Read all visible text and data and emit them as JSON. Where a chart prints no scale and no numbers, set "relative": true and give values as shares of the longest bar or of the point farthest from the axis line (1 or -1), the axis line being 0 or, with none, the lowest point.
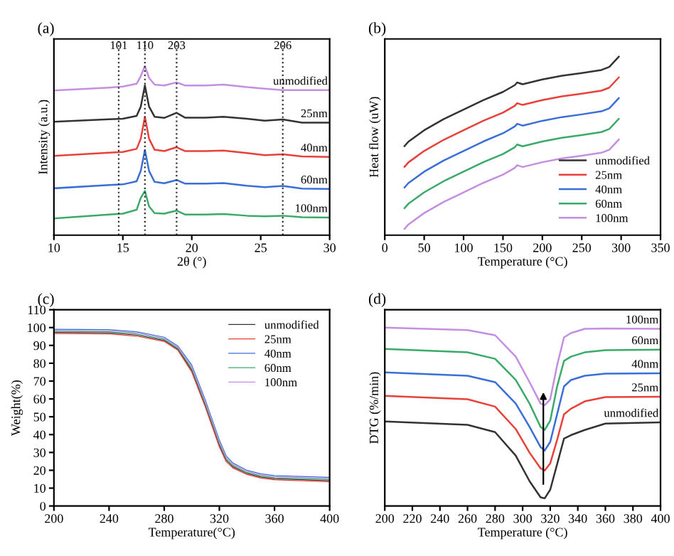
{
  "chart_data": [
    {
      "type": "line",
      "title": "(a)",
      "xlabel": "2θ (°)",
      "ylabel": "Intensity (a.u.)",
      "relative": true,
      "xlim": [
        10,
        30
      ],
      "xticks": [
        10,
        15,
        20,
        25,
        30
      ],
      "legend": false,
      "grid": false,
      "x": [
        10,
        14,
        15,
        16,
        16.3,
        16.6,
        16.9,
        17.3,
        18,
        18.9,
        19.5,
        21,
        22.3,
        24,
        25.3,
        26.6,
        28,
        30
      ],
      "series": [
        {
          "name": "unmodified",
          "color": "#c48fe0",
          "values": [
            0.855,
            0.872,
            0.878,
            0.895,
            0.94,
            1.0,
            0.93,
            0.89,
            0.885,
            0.903,
            0.885,
            0.885,
            0.89,
            0.875,
            0.866,
            0.857,
            0.857,
            0.857
          ]
        },
        {
          "name": "25nm",
          "color": "#333333",
          "values": [
            0.67,
            0.685,
            0.688,
            0.705,
            0.76,
            0.885,
            0.76,
            0.7,
            0.693,
            0.723,
            0.695,
            0.695,
            0.7,
            0.688,
            0.677,
            0.684,
            0.665,
            0.665
          ]
        },
        {
          "name": "40nm",
          "color": "#e8413a",
          "values": [
            0.469,
            0.488,
            0.492,
            0.51,
            0.57,
            0.7,
            0.57,
            0.505,
            0.497,
            0.52,
            0.497,
            0.497,
            0.5,
            0.485,
            0.473,
            0.478,
            0.465,
            0.462
          ]
        },
        {
          "name": "60nm",
          "color": "#3a6fd8",
          "values": [
            0.277,
            0.296,
            0.3,
            0.318,
            0.38,
            0.503,
            0.38,
            0.315,
            0.307,
            0.326,
            0.305,
            0.305,
            0.308,
            0.292,
            0.284,
            0.291,
            0.275,
            0.273
          ]
        },
        {
          "name": "100nm",
          "color": "#3aaa6a",
          "values": [
            0.099,
            0.122,
            0.127,
            0.15,
            0.22,
            0.261,
            0.17,
            0.13,
            0.127,
            0.145,
            0.122,
            0.122,
            0.125,
            0.115,
            0.111,
            0.115,
            0.106,
            0.104
          ]
        }
      ],
      "ref_lines": [
        {
          "axis": "x",
          "value": 14.7,
          "color": "#333333",
          "line_style": "dotted"
        },
        {
          "axis": "x",
          "value": 16.6,
          "color": "#333333",
          "line_style": "dotted"
        },
        {
          "axis": "x",
          "value": 18.9,
          "color": "#333333",
          "line_style": "dotted"
        },
        {
          "axis": "x",
          "value": 26.6,
          "color": "#333333",
          "line_style": "dotted"
        }
      ],
      "annotations": [
        {
          "text": "101",
          "x": 14.7
        },
        {
          "text": "110",
          "x": 16.6
        },
        {
          "text": "203",
          "x": 18.9
        },
        {
          "text": "206",
          "x": 26.6
        }
      ]
    },
    {
      "type": "line",
      "title": "(b)",
      "xlabel": "Temperature (°C)",
      "ylabel": "Heat flow (uW)",
      "relative": true,
      "xlim": [
        0,
        350
      ],
      "xticks": [
        0,
        50,
        100,
        150,
        200,
        250,
        300,
        350
      ],
      "legend": "bottom right",
      "grid": false,
      "x": [
        25,
        30,
        50,
        75,
        100,
        125,
        150,
        165,
        168,
        175,
        200,
        225,
        250,
        275,
        285,
        297
      ],
      "series": [
        {
          "name": "unmodified",
          "color": "#333333",
          "values": [
            0.499,
            0.524,
            0.588,
            0.651,
            0.704,
            0.757,
            0.803,
            0.841,
            0.856,
            0.846,
            0.873,
            0.894,
            0.909,
            0.926,
            0.943,
            1.0
          ]
        },
        {
          "name": "25nm",
          "color": "#e8413a",
          "values": [
            0.383,
            0.408,
            0.472,
            0.535,
            0.588,
            0.641,
            0.687,
            0.725,
            0.74,
            0.73,
            0.757,
            0.778,
            0.793,
            0.81,
            0.827,
            0.884
          ]
        },
        {
          "name": "40nm",
          "color": "#3a6fd8",
          "values": [
            0.267,
            0.292,
            0.356,
            0.419,
            0.472,
            0.525,
            0.571,
            0.609,
            0.624,
            0.614,
            0.641,
            0.662,
            0.677,
            0.694,
            0.711,
            0.768
          ]
        },
        {
          "name": "60nm",
          "color": "#3aaa6a",
          "values": [
            0.151,
            0.176,
            0.24,
            0.303,
            0.356,
            0.409,
            0.455,
            0.493,
            0.508,
            0.498,
            0.525,
            0.546,
            0.561,
            0.578,
            0.595,
            0.652
          ]
        },
        {
          "name": "100nm",
          "color": "#c48fe0",
          "values": [
            0.035,
            0.06,
            0.124,
            0.187,
            0.24,
            0.293,
            0.339,
            0.377,
            0.392,
            0.382,
            0.409,
            0.43,
            0.445,
            0.462,
            0.479,
            0.536
          ]
        }
      ]
    },
    {
      "type": "line",
      "title": "(c)",
      "xlabel": "Temperature(°C)",
      "ylabel": "Weight(%)",
      "xlim": [
        200,
        400
      ],
      "xticks": [
        200,
        240,
        280,
        320,
        360,
        400
      ],
      "ylim": [
        0,
        110
      ],
      "yticks": [
        0,
        10,
        20,
        30,
        40,
        50,
        60,
        70,
        80,
        90,
        100,
        110
      ],
      "legend": "top right",
      "grid": false,
      "x": [
        200,
        240,
        260,
        280,
        290,
        300,
        310,
        320,
        325,
        330,
        340,
        350,
        360,
        380,
        400
      ],
      "series": [
        {
          "name": "unmodified",
          "color": "#333333",
          "values": [
            97.2,
            97.0,
            95.8,
            92.8,
            87.8,
            76,
            56,
            34,
            25.6,
            21.9,
            18.2,
            16.2,
            15.2,
            14.7,
            14.2
          ]
        },
        {
          "name": "25nm",
          "color": "#e8413a",
          "values": [
            96.6,
            96.4,
            95.2,
            92.2,
            87.2,
            75,
            55,
            33,
            24.8,
            21.2,
            17.6,
            15.6,
            14.6,
            14.1,
            13.6
          ]
        },
        {
          "name": "40nm",
          "color": "#3a6fd8",
          "values": [
            99.0,
            98.8,
            97.6,
            94.6,
            89.6,
            79,
            59,
            37,
            28,
            24,
            20,
            18,
            17,
            16.5,
            16
          ]
        },
        {
          "name": "60nm",
          "color": "#3aaa6a",
          "values": [
            97.8,
            97.6,
            96.4,
            93.4,
            88.4,
            77,
            57,
            35,
            26.4,
            22.6,
            18.8,
            16.8,
            15.8,
            15.3,
            14.8
          ]
        },
        {
          "name": "100nm",
          "color": "#c48fe0",
          "values": [
            98.4,
            98.2,
            97.0,
            94.0,
            89.0,
            78,
            58,
            36,
            27.2,
            23.3,
            19.4,
            17.4,
            16.4,
            15.9,
            15.4
          ]
        }
      ]
    },
    {
      "type": "line",
      "title": "(d)",
      "xlabel": "Temperature (°C)",
      "ylabel": "DTG (%/min)",
      "relative": true,
      "xlim": [
        200,
        400
      ],
      "xticks": [
        200,
        220,
        240,
        260,
        280,
        300,
        320,
        340,
        360,
        380,
        400
      ],
      "legend": false,
      "grid": false,
      "x": [
        200,
        260,
        280,
        295,
        305,
        313,
        316,
        320,
        325,
        330,
        335,
        345,
        360,
        400
      ],
      "series": [
        {
          "name": "unmodified",
          "color": "#333333",
          "values": [
            0.474,
            0.455,
            0.414,
            0.282,
            0.139,
            0.048,
            0.043,
            0.091,
            0.234,
            0.378,
            0.397,
            0.426,
            0.462,
            0.469
          ]
        },
        {
          "name": "25nm",
          "color": "#e8413a",
          "values": [
            0.617,
            0.598,
            0.557,
            0.431,
            0.299,
            0.211,
            0.199,
            0.239,
            0.371,
            0.514,
            0.545,
            0.586,
            0.61,
            0.612
          ]
        },
        {
          "name": "40nm",
          "color": "#3a6fd8",
          "values": [
            0.749,
            0.73,
            0.694,
            0.574,
            0.443,
            0.33,
            0.311,
            0.359,
            0.514,
            0.67,
            0.706,
            0.73,
            0.742,
            0.744
          ]
        },
        {
          "name": "60nm",
          "color": "#3aaa6a",
          "values": [
            0.88,
            0.861,
            0.825,
            0.706,
            0.574,
            0.443,
            0.426,
            0.478,
            0.67,
            0.813,
            0.837,
            0.861,
            0.873,
            0.876
          ]
        },
        {
          "name": "100nm",
          "color": "#c48fe0",
          "values": [
            1.0,
            0.986,
            0.957,
            0.837,
            0.694,
            0.574,
            0.565,
            0.598,
            0.789,
            0.945,
            0.969,
            0.993,
            0.995,
            0.993
          ]
        }
      ]
    }
  ]
}
